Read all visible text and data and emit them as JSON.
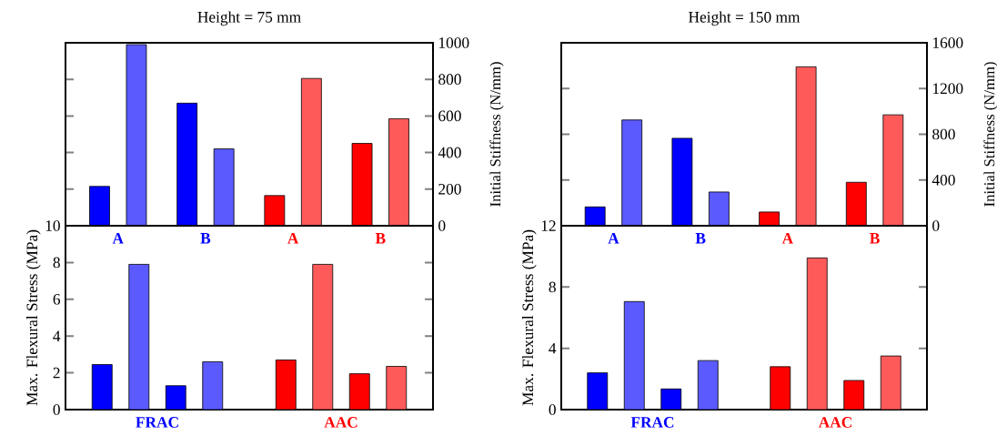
{
  "chart_data": [
    {
      "type": "bar",
      "title": "Height = 75 mm",
      "y2label": "Initial Stiffness (N/mm)",
      "categories": [
        "A",
        "B",
        "A",
        "B"
      ],
      "series": [
        {
          "colors": [
            "#0000ff",
            "#0000ff",
            "#ff0000",
            "#ff0000"
          ],
          "values": [
            215,
            670,
            165,
            450
          ],
          "axis": "y2"
        },
        {
          "colors": [
            "#5a5aff",
            "#5a5aff",
            "#ff5a5a",
            "#ff5a5a"
          ],
          "values": [
            990,
            420,
            805,
            585
          ],
          "axis": "y2"
        }
      ],
      "y2lim": [
        0,
        1000
      ],
      "y2ticks": [
        0,
        200,
        400,
        600,
        800,
        1000
      ]
    },
    {
      "type": "bar",
      "title": "Height = 150 mm",
      "y2label": "Initial Stiffness (N/mm)",
      "categories": [
        "A",
        "B",
        "A",
        "B"
      ],
      "series": [
        {
          "colors": [
            "#0000ff",
            "#0000ff",
            "#ff0000",
            "#ff0000"
          ],
          "values": [
            165,
            765,
            120,
            380
          ],
          "axis": "y2"
        },
        {
          "colors": [
            "#5a5aff",
            "#5a5aff",
            "#ff5a5a",
            "#ff5a5a"
          ],
          "values": [
            925,
            295,
            1390,
            970
          ],
          "axis": "y2"
        }
      ],
      "y2lim": [
        0,
        1600
      ],
      "y2ticks": [
        0,
        400,
        800,
        1200,
        1600
      ]
    },
    {
      "type": "bar",
      "ylabel": "Max. Flexural Stress (MPa)",
      "categories": [
        "FRAC",
        "AAC"
      ],
      "series": [
        {
          "colors": [
            "#0000ff",
            "#ff0000"
          ],
          "values": [
            2.45,
            2.7
          ]
        },
        {
          "colors": [
            "#5a5aff",
            "#ff5a5a"
          ],
          "values": [
            7.9,
            7.9
          ]
        },
        {
          "colors": [
            "#0000ff",
            "#ff0000"
          ],
          "values": [
            1.3,
            1.95
          ]
        },
        {
          "colors": [
            "#5a5aff",
            "#ff5a5a"
          ],
          "values": [
            2.6,
            2.35
          ]
        }
      ],
      "ylim": [
        0,
        10
      ],
      "yticks": [
        0,
        2,
        4,
        6,
        8,
        10
      ]
    },
    {
      "type": "bar",
      "ylabel": "Max. Flexural Stress (MPa)",
      "categories": [
        "FRAC",
        "AAC"
      ],
      "series": [
        {
          "colors": [
            "#0000ff",
            "#ff0000"
          ],
          "values": [
            2.4,
            2.8
          ]
        },
        {
          "colors": [
            "#5a5aff",
            "#ff5a5a"
          ],
          "values": [
            7.05,
            9.9
          ]
        },
        {
          "colors": [
            "#0000ff",
            "#ff0000"
          ],
          "values": [
            1.35,
            1.9
          ]
        },
        {
          "colors": [
            "#5a5aff",
            "#ff5a5a"
          ],
          "values": [
            3.2,
            3.5
          ]
        }
      ],
      "ylim": [
        0,
        12
      ],
      "yticks": [
        0,
        4,
        8,
        12
      ]
    }
  ]
}
